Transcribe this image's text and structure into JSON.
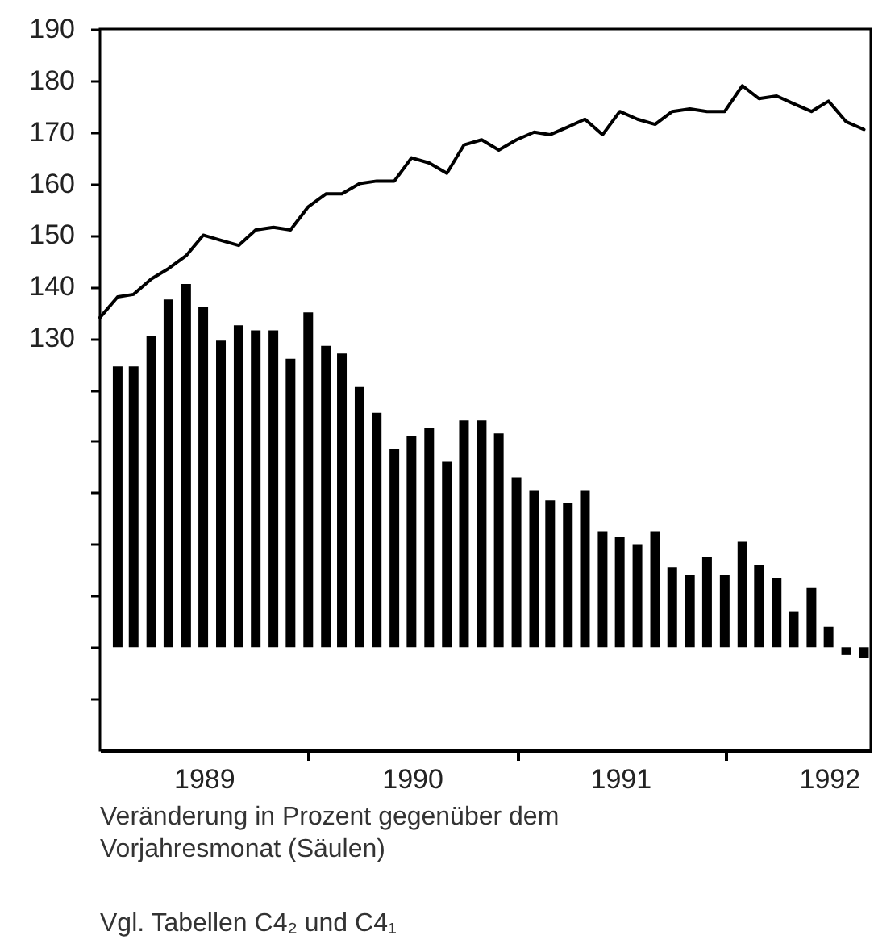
{
  "chart_data": {
    "type": "bar",
    "xlim": [
      "1988-12-31",
      "1992-09-12"
    ],
    "xticks": [
      {
        "value": "1990-01-01",
        "label": null
      },
      {
        "value": "1991-01-01",
        "label": null
      },
      {
        "value": "1992-01-01",
        "label": null
      },
      {
        "value": "1989-07-01",
        "label": "1989"
      },
      {
        "value": "1990-07-01",
        "label": "1990"
      },
      {
        "value": "1991-07-01",
        "label": "1991"
      },
      {
        "value": "1992-07-01",
        "label": "1992"
      }
    ],
    "ylim": [
      50,
      190
    ],
    "yticks": [
      190,
      180,
      170,
      160,
      150,
      140,
      130,
      {
        "value": 120,
        "label": null
      },
      {
        "value": 110,
        "label": null
      },
      {
        "value": 100,
        "label": null
      },
      {
        "value": 90,
        "label": null
      },
      {
        "value": 80,
        "label": null
      },
      {
        "value": 70,
        "label": null
      },
      {
        "value": 60,
        "label": null
      }
    ],
    "series": [
      {
        "color": "#000000",
        "x": [
          "1989-01-31",
          "1989-02-28",
          "1989-03-31",
          "1989-04-30",
          "1989-05-31",
          "1989-06-30",
          "1989-07-31",
          "1989-08-31",
          "1989-09-30",
          "1989-10-31",
          "1989-11-30",
          "1989-12-31",
          "1990-01-31",
          "1990-02-28",
          "1990-03-31",
          "1990-04-30",
          "1990-05-31",
          "1990-06-30",
          "1990-07-31",
          "1990-08-31",
          "1990-09-30",
          "1990-10-31",
          "1990-11-30",
          "1990-12-31",
          "1991-01-31",
          "1991-02-28",
          "1991-03-31",
          "1991-04-30",
          "1991-05-31",
          "1991-06-30",
          "1991-07-31",
          "1991-08-31",
          "1991-09-30",
          "1991-10-31",
          "1991-11-30",
          "1991-12-31",
          "1992-01-31",
          "1992-02-29",
          "1992-03-31",
          "1992-04-30",
          "1992-05-31",
          "1992-06-30",
          "1992-07-31",
          "1992-08-31"
        ],
        "base": [
          70,
          70,
          70,
          70,
          70,
          70,
          70,
          70,
          70,
          70,
          70,
          70,
          70,
          70,
          70,
          70,
          70,
          70,
          70,
          70,
          70,
          70,
          70,
          70,
          70,
          70,
          70,
          70,
          70,
          70,
          70,
          70,
          70,
          70,
          70,
          70,
          70,
          70,
          70,
          70,
          70,
          70,
          70,
          70
        ],
        "values": [
          54.5,
          54.5,
          60.5,
          67.5,
          70.5,
          66,
          59.5,
          62.5,
          61.5,
          61.5,
          56,
          65,
          58.5,
          57,
          50.5,
          45.5,
          38.5,
          41,
          42.5,
          36,
          44,
          44,
          41.5,
          33,
          30.5,
          28.5,
          28,
          30.5,
          22.5,
          21.5,
          20,
          22.5,
          15.5,
          14,
          17.5,
          14,
          20.5,
          16,
          13.5,
          7,
          11.5,
          4,
          -1.5,
          -2
        ]
      },
      {
        "type": "line",
        "color": "#000000",
        "x": [
          "1988-12-31",
          "1989-01-31",
          "1989-02-28",
          "1989-03-31",
          "1989-04-30",
          "1989-05-31",
          "1989-06-30",
          "1989-07-31",
          "1989-08-31",
          "1989-09-30",
          "1989-10-31",
          "1989-11-30",
          "1989-12-31",
          "1990-01-31",
          "1990-02-28",
          "1990-03-31",
          "1990-04-30",
          "1990-05-31",
          "1990-06-30",
          "1990-07-31",
          "1990-08-31",
          "1990-09-30",
          "1990-10-31",
          "1990-11-30",
          "1990-12-31",
          "1991-01-31",
          "1991-02-28",
          "1991-03-31",
          "1991-04-30",
          "1991-05-31",
          "1991-06-30",
          "1991-07-31",
          "1991-08-31",
          "1991-09-30",
          "1991-10-31",
          "1991-11-30",
          "1991-12-31",
          "1992-01-31",
          "1992-02-29",
          "1992-03-31",
          "1992-04-30",
          "1992-05-31",
          "1992-06-30",
          "1992-07-31",
          "1992-08-31"
        ],
        "values": [
          134,
          138,
          138.5,
          141.5,
          143.5,
          146,
          150,
          149,
          148,
          151,
          151.5,
          151,
          155.5,
          158,
          158,
          160,
          160.5,
          160.5,
          165,
          164,
          162,
          167.5,
          168.5,
          166.5,
          168.5,
          170,
          169.5,
          171,
          172.5,
          169.5,
          174,
          172.5,
          171.5,
          174,
          174.5,
          174,
          174,
          179,
          176.5,
          177,
          175.5,
          174,
          176,
          172,
          170.5
        ]
      }
    ],
    "annotations": [
      "Veränderung in Prozent gegenüber dem Vorjahresmonat (Säulen)",
      "Vgl. Tabellen C4₂ und C4₁"
    ]
  }
}
